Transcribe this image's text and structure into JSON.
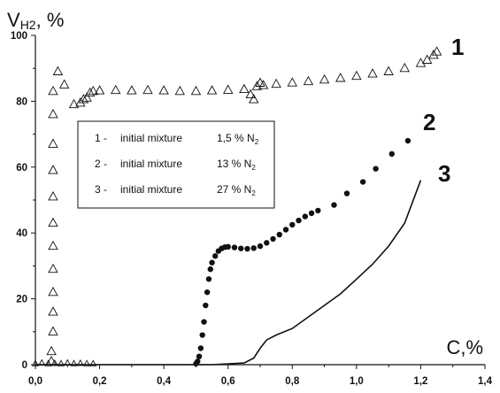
{
  "chart_data": {
    "type": "scatter",
    "title": "",
    "xlabel": "C,%",
    "ylabel": "V",
    "ylabel_sub": "H2",
    "ylabel_suffix": ", %",
    "xlim": [
      0.0,
      1.4
    ],
    "ylim": [
      0,
      100
    ],
    "x_ticks": [
      "0,0",
      "0,2",
      "0,4",
      "0,6",
      "0,8",
      "1,0",
      "1,2",
      "1,4"
    ],
    "y_ticks": [
      "0",
      "20",
      "40",
      "60",
      "80",
      "100"
    ],
    "grid": false,
    "legend_position": "center-left",
    "legend": [
      {
        "num": "1 -",
        "text": "initial mixture",
        "value": "1,5 % N",
        "sub": "2"
      },
      {
        "num": "2 -",
        "text": "initial mixture",
        "value": "13 % N",
        "sub": "2"
      },
      {
        "num": "3 -",
        "text": "initial mixture",
        "value": "27 % N",
        "sub": "2"
      }
    ],
    "series": [
      {
        "label": "1",
        "marker": "triangle",
        "points": [
          [
            0.05,
            1
          ],
          [
            0.05,
            4
          ],
          [
            0.055,
            10
          ],
          [
            0.055,
            16
          ],
          [
            0.055,
            22
          ],
          [
            0.055,
            29
          ],
          [
            0.055,
            36
          ],
          [
            0.055,
            43
          ],
          [
            0.055,
            51
          ],
          [
            0.055,
            59
          ],
          [
            0.055,
            67
          ],
          [
            0.055,
            76
          ],
          [
            0.055,
            83
          ],
          [
            0.07,
            89
          ],
          [
            0.09,
            85
          ],
          [
            0.12,
            79
          ],
          [
            0.14,
            79.5
          ],
          [
            0.15,
            80.5
          ],
          [
            0.16,
            81
          ],
          [
            0.17,
            82.5
          ],
          [
            0.18,
            83
          ],
          [
            0.2,
            83.2
          ],
          [
            0.25,
            83.3
          ],
          [
            0.3,
            83.2
          ],
          [
            0.35,
            83.3
          ],
          [
            0.4,
            83.2
          ],
          [
            0.45,
            83.0
          ],
          [
            0.5,
            83.0
          ],
          [
            0.55,
            83.2
          ],
          [
            0.6,
            83.4
          ],
          [
            0.65,
            83.6
          ],
          [
            0.67,
            82.0
          ],
          [
            0.68,
            80.5
          ],
          [
            0.69,
            84.5
          ],
          [
            0.7,
            85.5
          ],
          [
            0.71,
            84.8
          ],
          [
            0.75,
            85.2
          ],
          [
            0.8,
            85.6
          ],
          [
            0.85,
            86.0
          ],
          [
            0.9,
            86.5
          ],
          [
            0.95,
            87.0
          ],
          [
            1.0,
            87.6
          ],
          [
            1.05,
            88.3
          ],
          [
            1.1,
            89.0
          ],
          [
            1.15,
            90.0
          ],
          [
            1.2,
            91.5
          ],
          [
            1.22,
            92.5
          ],
          [
            1.24,
            94.0
          ],
          [
            1.25,
            95.0
          ]
        ]
      },
      {
        "label": "2",
        "marker": "dot",
        "points": [
          [
            0.5,
            0.3
          ],
          [
            0.505,
            1
          ],
          [
            0.51,
            2.5
          ],
          [
            0.515,
            5
          ],
          [
            0.52,
            9
          ],
          [
            0.525,
            13
          ],
          [
            0.53,
            18
          ],
          [
            0.535,
            22
          ],
          [
            0.54,
            26
          ],
          [
            0.545,
            29
          ],
          [
            0.55,
            31
          ],
          [
            0.56,
            33
          ],
          [
            0.57,
            34.5
          ],
          [
            0.58,
            35.3
          ],
          [
            0.59,
            35.7
          ],
          [
            0.6,
            35.8
          ],
          [
            0.62,
            35.6
          ],
          [
            0.64,
            35.3
          ],
          [
            0.66,
            35.2
          ],
          [
            0.68,
            35.4
          ],
          [
            0.7,
            36.0
          ],
          [
            0.72,
            37.0
          ],
          [
            0.74,
            38.2
          ],
          [
            0.76,
            39.5
          ],
          [
            0.78,
            41.0
          ],
          [
            0.8,
            42.5
          ],
          [
            0.82,
            43.8
          ],
          [
            0.84,
            45.0
          ],
          [
            0.86,
            46.0
          ],
          [
            0.88,
            46.8
          ],
          [
            0.93,
            48.5
          ],
          [
            0.97,
            52
          ],
          [
            1.02,
            55.5
          ],
          [
            1.06,
            59.5
          ],
          [
            1.11,
            64.0
          ],
          [
            1.16,
            68.0
          ]
        ]
      },
      {
        "label": "3",
        "marker": "line",
        "points": [
          [
            0.0,
            0
          ],
          [
            0.3,
            0
          ],
          [
            0.55,
            0
          ],
          [
            0.65,
            0.5
          ],
          [
            0.68,
            2
          ],
          [
            0.7,
            5
          ],
          [
            0.72,
            7.5
          ],
          [
            0.75,
            9
          ],
          [
            0.8,
            11
          ],
          [
            0.85,
            14.5
          ],
          [
            0.9,
            18
          ],
          [
            0.95,
            21.5
          ],
          [
            1.0,
            26
          ],
          [
            1.05,
            30.5
          ],
          [
            1.1,
            36
          ],
          [
            1.15,
            43
          ],
          [
            1.2,
            56
          ]
        ]
      },
      {
        "label": "",
        "marker": "small-triangle",
        "points": [
          [
            0.0,
            0.3
          ],
          [
            0.02,
            0.5
          ],
          [
            0.04,
            0.3
          ],
          [
            0.06,
            0.4
          ],
          [
            0.08,
            0.3
          ],
          [
            0.1,
            0.5
          ],
          [
            0.12,
            0.3
          ],
          [
            0.14,
            0.4
          ],
          [
            0.16,
            0.3
          ],
          [
            0.18,
            0.3
          ]
        ]
      }
    ]
  }
}
